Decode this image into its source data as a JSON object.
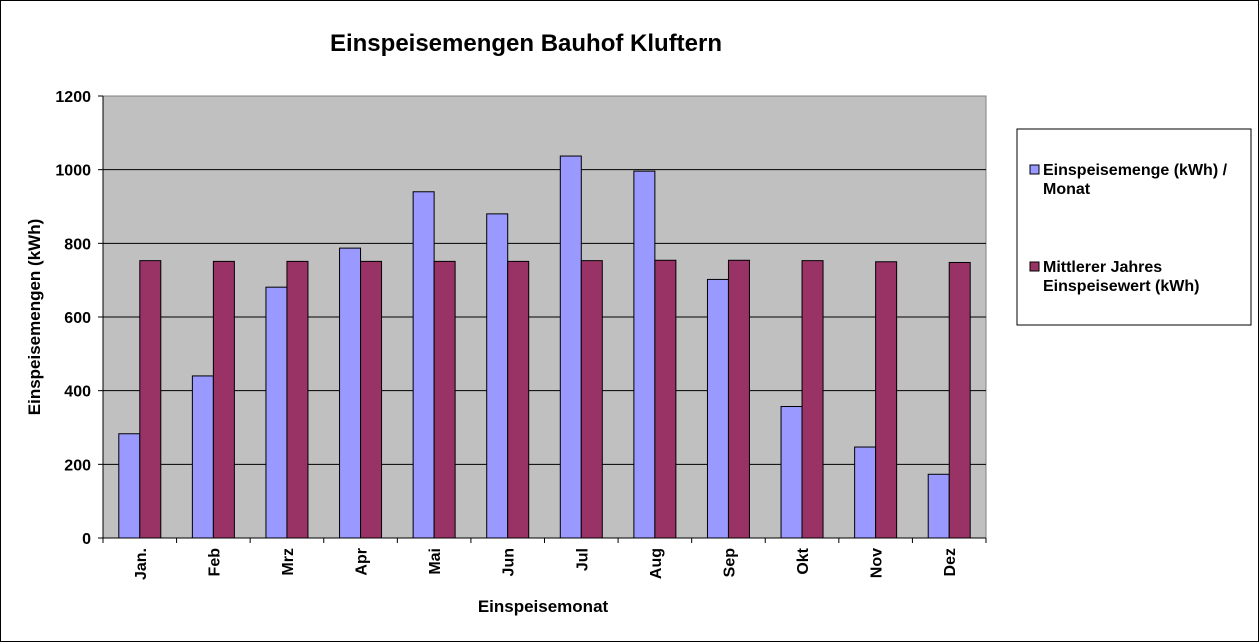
{
  "chart_data": {
    "type": "bar",
    "title": "Einspeisemengen Bauhof Kluftern",
    "xlabel": "Einspeisemonat",
    "ylabel": "Einspeisemengen (kWh)",
    "ylim": [
      0,
      1200
    ],
    "yticks": [
      "0",
      "200",
      "400",
      "600",
      "800",
      "1000",
      "1200"
    ],
    "categories": [
      "Jan.",
      "Feb",
      "Mrz",
      "Apr",
      "Mai",
      "Jun",
      "Jul",
      "Aug",
      "Sep",
      "Okt",
      "Nov",
      "Dez"
    ],
    "series": [
      {
        "name_lines": [
          "Einspeisemenge (kWh) /",
          "Monat"
        ],
        "color": "#9999ff",
        "values": [
          283,
          440,
          681,
          787,
          940,
          880,
          1037,
          996,
          702,
          357,
          247,
          173
        ]
      },
      {
        "name_lines": [
          "Mittlerer Jahres",
          "Einspeisewert (kWh)"
        ],
        "color": "#993366",
        "values": [
          753,
          751,
          751,
          751,
          751,
          751,
          753,
          754,
          754,
          753,
          750,
          748
        ]
      }
    ],
    "grid": true,
    "legend_position": "right",
    "plot_background": "#c0c0c0"
  }
}
